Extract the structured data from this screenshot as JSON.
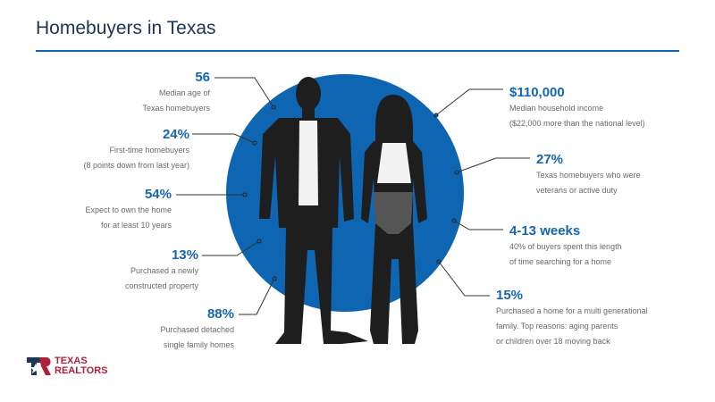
{
  "header": {
    "title": "Homebuyers in Texas"
  },
  "colors": {
    "accent": "#1565b5",
    "circle": "#0e66b3",
    "silhouette": "#1e1e1e",
    "logo_red": "#b0203a",
    "logo_navy": "#1d3557"
  },
  "left_stats": [
    {
      "value": "56",
      "lines": [
        "Median age of",
        "Texas homebuyers"
      ]
    },
    {
      "value": "24%",
      "lines": [
        "First-time homebuyers",
        "(8 points down from last year)"
      ]
    },
    {
      "value": "54%",
      "lines": [
        "Expect to own the home",
        "for at least 10 years"
      ]
    },
    {
      "value": "13%",
      "lines": [
        "Purchased a newly",
        "constructed property"
      ]
    },
    {
      "value": "88%",
      "lines": [
        "Purchased detached",
        "single family homes"
      ]
    }
  ],
  "right_stats": [
    {
      "value": "$110,000",
      "lines": [
        "Median household income",
        "($22,000 more than the national level)"
      ]
    },
    {
      "value": "27%",
      "lines": [
        "Texas homebuyers who were",
        "veterans or active duty"
      ]
    },
    {
      "value": "4-13 weeks",
      "lines": [
        "40% of buyers spent this length",
        "of time searching for a home"
      ]
    },
    {
      "value": "15%",
      "lines": [
        "Purchased a home for a multi generational",
        "family. Top reasons: aging parents",
        "or children over 18 moving back"
      ]
    }
  ],
  "logo": {
    "line1": "TEXAS",
    "line2": "REALTORS"
  }
}
